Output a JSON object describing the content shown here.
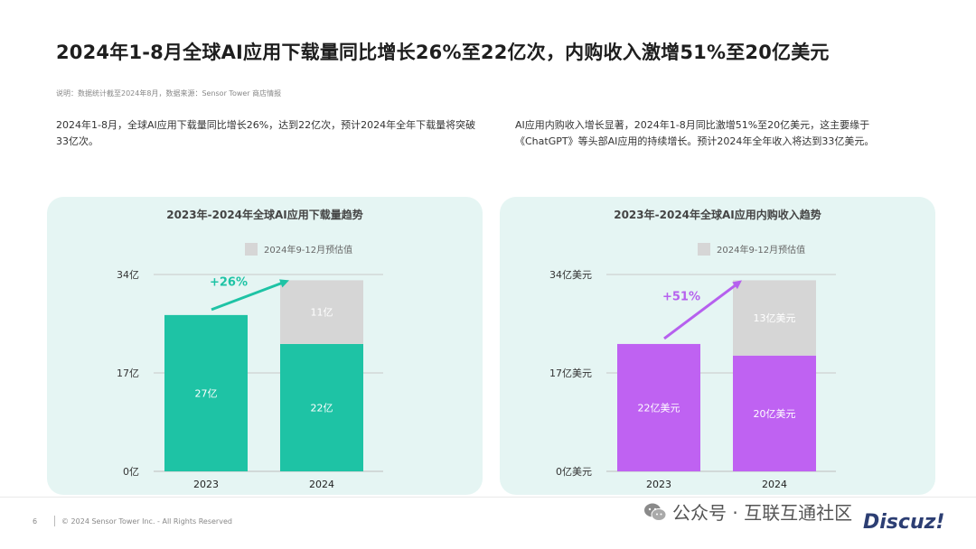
{
  "page": {
    "title": "2024年1-8月全球AI应用下载量同比增长26%至22亿次，内购收入激增51%至20亿美元",
    "note": "说明：数据统计截至2024年8月，数据来源：Sensor Tower 商店情报",
    "desc_left": "2024年1-8月，全球AI应用下载量同比增长26%，达到22亿次，预计2024年全年下载量将突破33亿次。",
    "desc_right": "AI应用内购收入增长显著，2024年1-8月同比激增51%至20亿美元，这主要缘于《ChatGPT》等头部AI应用的持续增长。预计2024年全年收入将达到33亿美元。",
    "page_number": "6",
    "copyright": "© 2024 Sensor Tower Inc. - All Rights Reserved",
    "watermark": "公众号 · 互联互通社区",
    "watermark_logo": "Discuz!"
  },
  "colors": {
    "teal": "#1ec3a5",
    "teal_arrow": "#19c1a4",
    "purple": "#bf62f2",
    "purple_arrow": "#b660ee",
    "estimate_gray": "#d6d6d6",
    "panel_bg": "#e5f5f3"
  },
  "chart_data": [
    {
      "type": "bar",
      "stacked": true,
      "title": "2023年-2024年全球AI应用下载量趋势",
      "categories": [
        "2023",
        "2024"
      ],
      "yticks": [
        "0亿",
        "17亿",
        "34亿"
      ],
      "ytick_values": [
        0,
        17,
        34
      ],
      "ylim": [
        0,
        34
      ],
      "series": [
        {
          "name": "",
          "values": [
            27,
            22
          ],
          "labels": [
            "27亿",
            "22亿"
          ],
          "color": "#1ec3a5"
        },
        {
          "name": "2024年9-12月预估值",
          "values": [
            0,
            11
          ],
          "labels": [
            "",
            "11亿"
          ],
          "color": "#d6d6d6"
        }
      ],
      "legend": "top-center",
      "annotation": "+26%",
      "accent": "#1ec3a5"
    },
    {
      "type": "bar",
      "stacked": true,
      "title": "2023年-2024年全球AI应用内购收入趋势",
      "categories": [
        "2023",
        "2024"
      ],
      "yticks": [
        "0亿美元",
        "17亿美元",
        "34亿美元"
      ],
      "ytick_values": [
        0,
        17,
        34
      ],
      "ylim": [
        0,
        34
      ],
      "series": [
        {
          "name": "",
          "values": [
            22,
            20
          ],
          "labels": [
            "22亿美元",
            "20亿美元"
          ],
          "color": "#bf62f2"
        },
        {
          "name": "2024年9-12月预估值",
          "values": [
            0,
            13
          ],
          "labels": [
            "",
            "13亿美元"
          ],
          "color": "#d6d6d6"
        }
      ],
      "legend": "top-center",
      "annotation": "+51%",
      "accent": "#b660ee"
    }
  ]
}
